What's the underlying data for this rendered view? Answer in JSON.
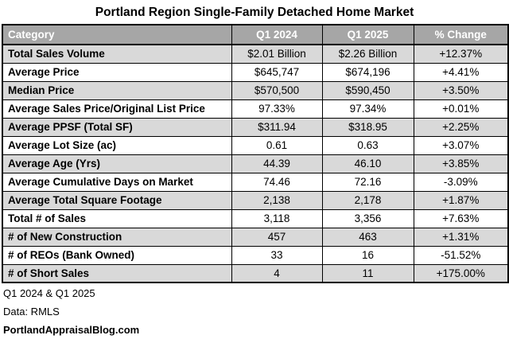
{
  "title": "Portland Region Single-Family Detached Home Market",
  "colors": {
    "header_bg": "#a6a6a6",
    "header_text": "#ffffff",
    "row_alt_bg": "#d9d9d9",
    "row_bg": "#ffffff",
    "border": "#000000"
  },
  "chart_data": {
    "type": "table",
    "title": "Portland Region Single-Family Detached Home Market",
    "columns": [
      "Category",
      "Q1 2024",
      "Q1 2025",
      "% Change"
    ],
    "rows": [
      [
        "Total Sales Volume",
        "$2.01 Billion",
        "$2.26 Billion",
        "+12.37%"
      ],
      [
        "Average Price",
        "$645,747",
        "$674,196",
        "+4.41%"
      ],
      [
        "Median Price",
        "$570,500",
        "$590,450",
        "+3.50%"
      ],
      [
        "Average Sales Price/Original List Price",
        "97.33%",
        "97.34%",
        "+0.01%"
      ],
      [
        "Average PPSF (Total SF)",
        "$311.94",
        "$318.95",
        "+2.25%"
      ],
      [
        "Average Lot Size (ac)",
        "0.61",
        "0.63",
        "+3.07%"
      ],
      [
        "Average Age (Yrs)",
        "44.39",
        "46.10",
        "+3.85%"
      ],
      [
        "Average Cumulative Days on Market",
        "74.46",
        "72.16",
        "-3.09%"
      ],
      [
        "Average Total Square Footage",
        "2,138",
        "2,178",
        "+1.87%"
      ],
      [
        "Total # of Sales",
        "3,118",
        "3,356",
        "+7.63%"
      ],
      [
        "# of New Construction",
        "457",
        "463",
        "+1.31%"
      ],
      [
        "# of REOs (Bank Owned)",
        "33",
        "16",
        "-51.52%"
      ],
      [
        "# of Short Sales",
        "4",
        "11",
        "+175.00%"
      ]
    ],
    "layout_hints": {
      "striped_rows": "odd rows shaded gray starting with first data row",
      "category_column_align": "left",
      "value_columns_align": "center"
    }
  },
  "footer": {
    "line1": "Q1 2024 & Q1 2025",
    "line2": "Data: RMLS",
    "line3": "PortlandAppraisalBlog.com"
  }
}
